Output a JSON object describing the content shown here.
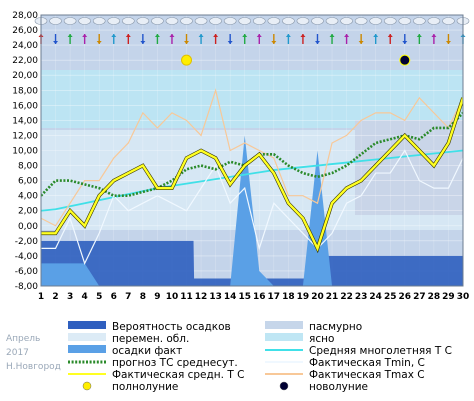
{
  "meta": {
    "month": "Апрель",
    "year": "2017",
    "city": "Н.Новгород"
  },
  "colors": {
    "overcast": "#c6d6ea",
    "partly": "#dcebf6",
    "clear": "#bfe6f4",
    "precip_prob": "#2f5fbf",
    "precip_fact": "#5aa0e6",
    "forecast_avg": "#2a8a2a",
    "norm": "#40e0e8",
    "tmin": "#f0f8ff",
    "tavg": "#ffff22",
    "tmax": "#f8c898",
    "full_moon": "#ffee00",
    "new_moon": "#000033"
  },
  "chart_data": {
    "type": "line",
    "x": [
      1,
      2,
      3,
      4,
      5,
      6,
      7,
      8,
      9,
      10,
      11,
      12,
      13,
      14,
      15,
      16,
      17,
      18,
      19,
      20,
      21,
      22,
      23,
      24,
      25,
      26,
      27,
      28,
      29,
      30
    ],
    "xlim": [
      1,
      30
    ],
    "ylim": [
      -8,
      28
    ],
    "y_ticks": [
      "28,00",
      "26,00",
      "24,00",
      "22,00",
      "20,00",
      "18,00",
      "16,00",
      "14,00",
      "12,00",
      "10,00",
      "8,00",
      "6,00",
      "4,00",
      "2,00",
      "0,00",
      "-2,00",
      "-4,00",
      "-6,00",
      "-8,00"
    ],
    "x_ticks": [
      "1",
      "2",
      "3",
      "4",
      "5",
      "6",
      "7",
      "8",
      "9",
      "10",
      "11",
      "12",
      "13",
      "14",
      "15",
      "16",
      "17",
      "18",
      "19",
      "20",
      "21",
      "22",
      "23",
      "24",
      "25",
      "26",
      "27",
      "28",
      "29",
      "30"
    ],
    "series": [
      {
        "name": "Фактическая Tmax С",
        "values": [
          1,
          0,
          3,
          6,
          6,
          9,
          11,
          15,
          13,
          15,
          14,
          12,
          18,
          10,
          11,
          10,
          9,
          4,
          4,
          3,
          11,
          12,
          14,
          15,
          15,
          14,
          17,
          15,
          13,
          17
        ]
      },
      {
        "name": "Фактическая Tmin, С",
        "values": [
          -3,
          -3,
          1,
          -5,
          -1,
          4,
          2,
          3,
          4,
          3,
          2,
          5,
          8,
          3,
          5,
          -3,
          3,
          1,
          -1,
          -3,
          -1,
          3,
          4,
          7,
          7,
          10,
          6,
          5,
          5,
          9
        ]
      },
      {
        "name": "Фактическая средн. Т С",
        "values": [
          -1,
          -1,
          2,
          0,
          4,
          6,
          7,
          8,
          5,
          5,
          9,
          10,
          9,
          5.5,
          8,
          9.5,
          7,
          3,
          1,
          -3,
          3,
          5,
          6,
          8,
          10,
          12,
          10,
          8,
          11,
          17
        ]
      },
      {
        "name": "прогноз ТС среднесут.",
        "values": [
          4,
          6,
          6,
          5.5,
          5,
          4,
          4,
          4.5,
          5,
          6,
          7.5,
          8,
          7.5,
          8.5,
          8,
          9.5,
          9.5,
          8,
          7,
          6.5,
          7,
          8,
          9.5,
          11,
          11.5,
          12,
          11.5,
          13,
          13,
          15
        ]
      },
      {
        "name": "Средняя многолетняя Т С",
        "values": [
          2,
          2.2,
          2.6,
          3,
          3.4,
          3.8,
          4.2,
          4.6,
          5,
          5.3,
          5.6,
          5.9,
          6.2,
          6.5,
          6.8,
          7.1,
          7.4,
          7.6,
          7.8,
          8,
          8.2,
          8.4,
          8.6,
          8.8,
          9,
          9.2,
          9.4,
          9.6,
          9.8,
          10
        ]
      },
      {
        "name": "осадки факт",
        "values": [
          -5,
          -5,
          -5,
          -5,
          -8,
          -8,
          -8,
          -8,
          -8,
          -8,
          -8,
          -8,
          -8,
          -8,
          12,
          -6,
          -8,
          -8,
          -8,
          10,
          -8,
          -8,
          -8,
          -8,
          -8,
          -8,
          -8,
          -8,
          -8,
          -8
        ]
      },
      {
        "name": "Вероятность осадков",
        "values": [
          -2,
          -2,
          -2,
          -2,
          -2,
          -2,
          -2,
          -2,
          -2,
          -2,
          -2,
          -7,
          -7,
          -7,
          -7,
          -7,
          -7,
          -7,
          -7,
          -7,
          -4,
          -4,
          -4,
          -4,
          -4,
          -4,
          -4,
          -4,
          -4,
          -4
        ]
      }
    ],
    "legend": [
      {
        "label": "Вероятность осадков",
        "color_key": "precip_prob",
        "shape": "box"
      },
      {
        "label": "пасмурно",
        "color_key": "overcast",
        "shape": "box"
      },
      {
        "label": "перемен. обл.",
        "color_key": "partly",
        "shape": "box"
      },
      {
        "label": "ясно",
        "color_key": "clear",
        "shape": "box"
      },
      {
        "label": "осадки факт",
        "color_key": "precip_fact",
        "shape": "box"
      },
      {
        "label": "Средняя многолетняя Т С",
        "color_key": "norm",
        "shape": "line"
      },
      {
        "label": "прогноз ТС среднесут.",
        "color_key": "forecast_avg",
        "shape": "dotline"
      },
      {
        "label": "Фактическая Tmin, С",
        "color_key": "tmin",
        "shape": "line"
      },
      {
        "label": "Фактическая средн. Т С",
        "color_key": "tavg",
        "shape": "line"
      },
      {
        "label": "Фактическая Tmax С",
        "color_key": "tmax",
        "shape": "line"
      },
      {
        "label": "полнолуние",
        "color_key": "full_moon",
        "shape": "circle"
      },
      {
        "label": "новолуние",
        "color_key": "new_moon",
        "shape": "circle"
      }
    ],
    "moon_markers": [
      {
        "phase": "полнолуние",
        "day": 11,
        "y": 22
      },
      {
        "phase": "новолуние",
        "day": 26,
        "y": 22
      }
    ],
    "grid": true
  }
}
